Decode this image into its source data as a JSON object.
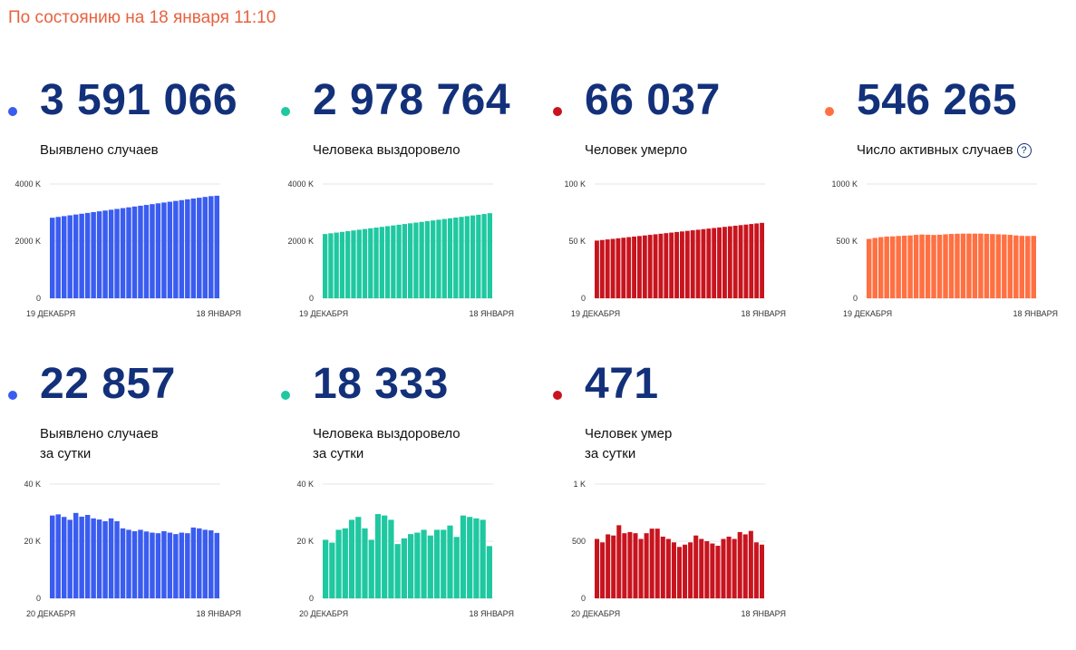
{
  "status_text": "По состоянию на 18 января 11:10",
  "cards": [
    {
      "value": "3 591 066",
      "label": [
        "Выявлено случаев"
      ],
      "color": "#3a5cf0"
    },
    {
      "value": "2 978 764",
      "label": [
        "Человека выздоровело"
      ],
      "color": "#1fc8a0"
    },
    {
      "value": "66 037",
      "label": [
        "Человек умерло"
      ],
      "color": "#c8141e"
    },
    {
      "value": "546 265",
      "label": [
        "Число активных случаев"
      ],
      "color": "#ff7042",
      "help": "?"
    },
    {
      "value": "22 857",
      "label": [
        "Выявлено случаев",
        "за сутки"
      ],
      "color": "#3a5cf0"
    },
    {
      "value": "18 333",
      "label": [
        "Человека выздоровело",
        "за сутки"
      ],
      "color": "#1fc8a0"
    },
    {
      "value": "471",
      "label": [
        "Человек умер",
        "за сутки"
      ],
      "color": "#c8141e"
    }
  ],
  "chart_data": [
    {
      "type": "bar",
      "color": "#3a5cf0",
      "ylim": [
        0,
        4000
      ],
      "yticks": [
        "4000 K",
        "2000 K",
        "0"
      ],
      "xlabels": [
        "19 ДЕКАБРЯ",
        "18 ЯНВАРЯ"
      ],
      "values": [
        2820,
        2848,
        2876,
        2904,
        2932,
        2960,
        2988,
        3016,
        3044,
        3072,
        3100,
        3128,
        3156,
        3184,
        3212,
        3240,
        3268,
        3296,
        3324,
        3352,
        3380,
        3408,
        3436,
        3464,
        3492,
        3520,
        3548,
        3576,
        3591
      ]
    },
    {
      "type": "bar",
      "color": "#1fc8a0",
      "ylim": [
        0,
        4000
      ],
      "yticks": [
        "4000 K",
        "2000 K",
        "0"
      ],
      "xlabels": [
        "19 ДЕКАБРЯ",
        "18 ЯНВАРЯ"
      ],
      "values": [
        2250,
        2275,
        2300,
        2325,
        2350,
        2375,
        2400,
        2425,
        2450,
        2475,
        2500,
        2525,
        2550,
        2575,
        2600,
        2625,
        2650,
        2675,
        2700,
        2725,
        2750,
        2775,
        2800,
        2825,
        2850,
        2875,
        2900,
        2925,
        2950,
        2979
      ]
    },
    {
      "type": "bar",
      "color": "#c8141e",
      "ylim": [
        0,
        100
      ],
      "yticks": [
        "100 K",
        "50 K",
        "0"
      ],
      "xlabels": [
        "19 ДЕКАБРЯ",
        "18 ЯНВАРЯ"
      ],
      "values": [
        50.5,
        51.0,
        51.5,
        52.0,
        52.5,
        53.0,
        53.5,
        54.0,
        54.5,
        55.0,
        55.5,
        56.0,
        56.5,
        57.0,
        57.5,
        58.0,
        58.5,
        59.0,
        59.5,
        60.0,
        60.5,
        61.0,
        61.5,
        62.0,
        62.5,
        63.0,
        63.5,
        64.0,
        64.5,
        65.0,
        65.5,
        66.0
      ]
    },
    {
      "type": "bar",
      "color": "#ff7042",
      "ylim": [
        0,
        1000
      ],
      "yticks": [
        "1000 K",
        "500 K",
        "0"
      ],
      "xlabels": [
        "19 ДЕКАБРЯ",
        "18 ЯНВАРЯ"
      ],
      "values": [
        520,
        528,
        535,
        540,
        542,
        545,
        548,
        550,
        555,
        558,
        556,
        554,
        556,
        560,
        563,
        565,
        566,
        566,
        566,
        566,
        564,
        562,
        560,
        558,
        555,
        550,
        546,
        545,
        546
      ]
    },
    {
      "type": "bar",
      "color": "#3a5cf0",
      "ylim": [
        0,
        40
      ],
      "yticks": [
        "40 K",
        "20 K",
        "0"
      ],
      "xlabels": [
        "20 ДЕКАБРЯ",
        "18 ЯНВАРЯ"
      ],
      "values": [
        29.0,
        29.4,
        28.5,
        27.5,
        29.9,
        28.6,
        29.2,
        28.0,
        27.6,
        27.0,
        28.0,
        27.0,
        24.5,
        24.0,
        23.5,
        24.0,
        23.4,
        23.0,
        22.8,
        23.5,
        23.0,
        22.5,
        23.0,
        22.8,
        24.8,
        24.5,
        24.0,
        23.8,
        22.9
      ]
    },
    {
      "type": "bar",
      "color": "#1fc8a0",
      "ylim": [
        0,
        40
      ],
      "yticks": [
        "40 K",
        "20 K",
        "0"
      ],
      "xlabels": [
        "20 ДЕКАБРЯ",
        "18 ЯНВАРЯ"
      ],
      "values": [
        20.5,
        19.5,
        24.0,
        24.5,
        27.5,
        28.5,
        24.5,
        20.5,
        29.5,
        29.0,
        27.5,
        19.0,
        21.0,
        22.5,
        23.0,
        24.0,
        22.0,
        24.0,
        24.0,
        25.5,
        21.5,
        29.0,
        28.5,
        28.0,
        27.5,
        18.3
      ]
    },
    {
      "type": "bar",
      "color": "#c8141e",
      "ylim": [
        0,
        1
      ],
      "yticks": [
        "1 K",
        "500",
        "0"
      ],
      "xlabels": [
        "20 ДЕКАБРЯ",
        "18 ЯНВАРЯ"
      ],
      "values": [
        0.52,
        0.49,
        0.56,
        0.55,
        0.64,
        0.57,
        0.58,
        0.57,
        0.52,
        0.57,
        0.61,
        0.61,
        0.54,
        0.52,
        0.49,
        0.45,
        0.47,
        0.49,
        0.55,
        0.52,
        0.5,
        0.48,
        0.46,
        0.52,
        0.54,
        0.52,
        0.58,
        0.56,
        0.59,
        0.49,
        0.47
      ]
    }
  ]
}
